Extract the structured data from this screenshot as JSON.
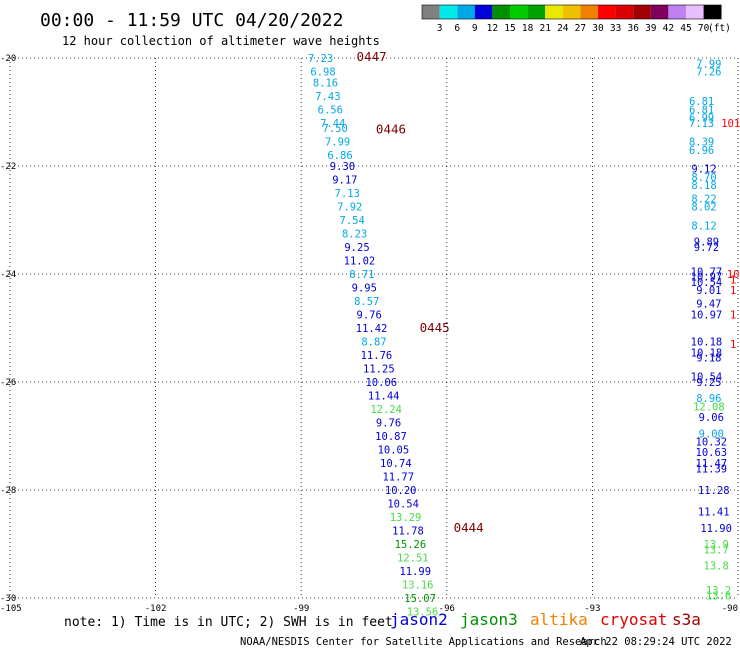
{
  "chart_data": {
    "type": "scatter",
    "title": "00:00 - 11:59 UTC 04/20/2022",
    "subtitle": "12 hour collection of altimeter wave heights",
    "unit": "(ft)",
    "xlim": [
      -105,
      -90
    ],
    "ylim": [
      -30,
      -20
    ],
    "x_ticks": [
      -105,
      -102,
      -99,
      -96,
      -93,
      -90
    ],
    "y_ticks": [
      -20,
      -22,
      -24,
      -26,
      -28,
      -30
    ],
    "x_tick_labels": [
      "-105",
      "-102",
      "-99",
      "-96",
      "-93",
      "-90"
    ],
    "y_tick_labels": [
      "-20",
      "-22",
      "-24",
      "-26",
      "-28",
      "-30"
    ],
    "grid": true,
    "colorbar": {
      "labels": [
        "3",
        "6",
        "9",
        "12",
        "15",
        "18",
        "21",
        "24",
        "27",
        "30",
        "33",
        "36",
        "39",
        "42",
        "45",
        "70"
      ],
      "colors": [
        "#808080",
        "#00e8e8",
        "#00a8e8",
        "#0000d8",
        "#009000",
        "#00cc00",
        "#00a000",
        "#e8e800",
        "#f0c000",
        "#f08000",
        "#ff0000",
        "#d80000",
        "#a00000",
        "#800060",
        "#c080f0",
        "#e8c0ff",
        "#000000"
      ]
    },
    "series": [
      {
        "name": "track",
        "points": [
          {
            "x": -98.6,
            "y": -20.0,
            "v": "7.23",
            "c": "#00a8e8"
          },
          {
            "x": -98.55,
            "y": -20.25,
            "v": "6.98",
            "c": "#00a8e8"
          },
          {
            "x": -98.5,
            "y": -20.45,
            "v": "8.16",
            "c": "#00a8e8"
          },
          {
            "x": -98.45,
            "y": -20.7,
            "v": "7.43",
            "c": "#00a8e8"
          },
          {
            "x": -98.4,
            "y": -20.95,
            "v": "6.56",
            "c": "#00a8e8"
          },
          {
            "x": -98.35,
            "y": -21.2,
            "v": "7.44",
            "c": "#00a8e8"
          },
          {
            "x": -98.3,
            "y": -21.3,
            "v": "7.50",
            "c": "#00a8e8"
          },
          {
            "x": -98.25,
            "y": -21.55,
            "v": "7.99",
            "c": "#00a8e8"
          },
          {
            "x": -98.2,
            "y": -21.8,
            "v": "6.86",
            "c": "#00a8e8"
          },
          {
            "x": -98.15,
            "y": -22.0,
            "v": "9.30",
            "c": "#0000d8"
          },
          {
            "x": -98.1,
            "y": -22.25,
            "v": "9.17",
            "c": "#0000d8"
          },
          {
            "x": -98.05,
            "y": -22.5,
            "v": "7.13",
            "c": "#00a8e8"
          },
          {
            "x": -98.0,
            "y": -22.75,
            "v": "7.92",
            "c": "#00a8e8"
          },
          {
            "x": -97.95,
            "y": -23.0,
            "v": "7.54",
            "c": "#00a8e8"
          },
          {
            "x": -97.9,
            "y": -23.25,
            "v": "8.23",
            "c": "#00a8e8"
          },
          {
            "x": -97.85,
            "y": -23.5,
            "v": "9.25",
            "c": "#0000d8"
          },
          {
            "x": -97.8,
            "y": -23.75,
            "v": "11.02",
            "c": "#0000d8"
          },
          {
            "x": -97.75,
            "y": -24.0,
            "v": "8.71",
            "c": "#00a8e8"
          },
          {
            "x": -97.7,
            "y": -24.25,
            "v": "9.95",
            "c": "#0000d8"
          },
          {
            "x": -97.65,
            "y": -24.5,
            "v": "8.57",
            "c": "#00a8e8"
          },
          {
            "x": -97.6,
            "y": -24.75,
            "v": "9.76",
            "c": "#0000d8"
          },
          {
            "x": -97.55,
            "y": -25.0,
            "v": "11.42",
            "c": "#0000d8"
          },
          {
            "x": -97.5,
            "y": -25.25,
            "v": "8.87",
            "c": "#00a8e8"
          },
          {
            "x": -97.45,
            "y": -25.5,
            "v": "11.76",
            "c": "#0000d8"
          },
          {
            "x": -97.4,
            "y": -25.75,
            "v": "11.25",
            "c": "#0000d8"
          },
          {
            "x": -97.35,
            "y": -26.0,
            "v": "10.06",
            "c": "#0000d8"
          },
          {
            "x": -97.3,
            "y": -26.25,
            "v": "11.44",
            "c": "#0000d8"
          },
          {
            "x": -97.25,
            "y": -26.5,
            "v": "12.24",
            "c": "#44dd44"
          },
          {
            "x": -97.2,
            "y": -26.75,
            "v": "9.76",
            "c": "#0000d8"
          },
          {
            "x": -97.15,
            "y": -27.0,
            "v": "10.87",
            "c": "#0000d8"
          },
          {
            "x": -97.1,
            "y": -27.25,
            "v": "10.05",
            "c": "#0000d8"
          },
          {
            "x": -97.05,
            "y": -27.5,
            "v": "10.74",
            "c": "#0000d8"
          },
          {
            "x": -97.0,
            "y": -27.75,
            "v": "11.77",
            "c": "#0000d8"
          },
          {
            "x": -96.95,
            "y": -28.0,
            "v": "10.20",
            "c": "#0000d8"
          },
          {
            "x": -96.9,
            "y": -28.25,
            "v": "10.54",
            "c": "#0000d8"
          },
          {
            "x": -96.85,
            "y": -28.5,
            "v": "13.29",
            "c": "#44dd44"
          },
          {
            "x": -96.8,
            "y": -28.75,
            "v": "11.78",
            "c": "#0000d8"
          },
          {
            "x": -96.75,
            "y": -29.0,
            "v": "15.26",
            "c": "#009000"
          },
          {
            "x": -96.7,
            "y": -29.25,
            "v": "12.51",
            "c": "#44dd44"
          },
          {
            "x": -96.65,
            "y": -29.5,
            "v": "11.99",
            "c": "#0000d8"
          },
          {
            "x": -96.6,
            "y": -29.75,
            "v": "13.16",
            "c": "#44dd44"
          },
          {
            "x": -96.55,
            "y": -30.0,
            "v": "15.07",
            "c": "#009000"
          },
          {
            "x": -96.5,
            "y": -30.25,
            "v": "13.56",
            "c": "#44dd44"
          },
          {
            "x": -90.6,
            "y": -20.1,
            "v": "7.99",
            "c": "#00a8e8"
          },
          {
            "x": -90.6,
            "y": -20.25,
            "v": "7.26",
            "c": "#00a8e8"
          },
          {
            "x": -90.75,
            "y": -20.8,
            "v": "6.81",
            "c": "#00a8e8"
          },
          {
            "x": -90.75,
            "y": -20.95,
            "v": "6.81",
            "c": "#00a8e8"
          },
          {
            "x": -90.75,
            "y": -21.1,
            "v": "6.99",
            "c": "#00a8e8"
          },
          {
            "x": -90.75,
            "y": -21.2,
            "v": "7.13",
            "c": "#00a8e8"
          },
          {
            "x": -90.75,
            "y": -21.55,
            "v": "8.39",
            "c": "#00a8e8"
          },
          {
            "x": -90.75,
            "y": -21.7,
            "v": "6.96",
            "c": "#00a8e8"
          },
          {
            "x": -90.7,
            "y": -22.05,
            "v": "9.12",
            "c": "#0000d8"
          },
          {
            "x": -90.7,
            "y": -22.2,
            "v": "8.70",
            "c": "#00a8e8"
          },
          {
            "x": -90.7,
            "y": -22.35,
            "v": "8.18",
            "c": "#00a8e8"
          },
          {
            "x": -90.7,
            "y": -22.6,
            "v": "8.22",
            "c": "#00a8e8"
          },
          {
            "x": -90.7,
            "y": -22.75,
            "v": "8.02",
            "c": "#00a8e8"
          },
          {
            "x": -90.7,
            "y": -23.1,
            "v": "8.12",
            "c": "#00a8e8"
          },
          {
            "x": -90.65,
            "y": -23.4,
            "v": "9.89",
            "c": "#0000d8"
          },
          {
            "x": -90.65,
            "y": -23.5,
            "v": "9.72",
            "c": "#0000d8"
          },
          {
            "x": -90.65,
            "y": -23.95,
            "v": "10.77",
            "c": "#0000d8"
          },
          {
            "x": -90.65,
            "y": -24.05,
            "v": "10.97",
            "c": "#0000d8"
          },
          {
            "x": -90.65,
            "y": -24.15,
            "v": "10.54",
            "c": "#0000d8"
          },
          {
            "x": -90.6,
            "y": -24.3,
            "v": "9.01",
            "c": "#0000d8"
          },
          {
            "x": -90.6,
            "y": -24.55,
            "v": "9.47",
            "c": "#0000d8"
          },
          {
            "x": -90.65,
            "y": -24.75,
            "v": "10.97",
            "c": "#0000d8"
          },
          {
            "x": -90.65,
            "y": -25.25,
            "v": "10.18",
            "c": "#0000d8"
          },
          {
            "x": -90.65,
            "y": -25.45,
            "v": "10.18",
            "c": "#0000d8"
          },
          {
            "x": -90.6,
            "y": -25.55,
            "v": "9.18",
            "c": "#0000d8"
          },
          {
            "x": -90.65,
            "y": -25.9,
            "v": "10.54",
            "c": "#0000d8"
          },
          {
            "x": -90.6,
            "y": -26.0,
            "v": "9.25",
            "c": "#0000d8"
          },
          {
            "x": -90.6,
            "y": -26.3,
            "v": "8.96",
            "c": "#00a8e8"
          },
          {
            "x": -90.6,
            "y": -26.45,
            "v": "12.08",
            "c": "#44dd44"
          },
          {
            "x": -90.55,
            "y": -26.65,
            "v": "9.06",
            "c": "#0000d8"
          },
          {
            "x": -90.55,
            "y": -26.95,
            "v": "9.00",
            "c": "#00a8e8"
          },
          {
            "x": -90.55,
            "y": -27.1,
            "v": "10.32",
            "c": "#0000d8"
          },
          {
            "x": -90.55,
            "y": -27.3,
            "v": "10.63",
            "c": "#0000d8"
          },
          {
            "x": -90.55,
            "y": -27.5,
            "v": "11.47",
            "c": "#0000d8"
          },
          {
            "x": -90.55,
            "y": -27.6,
            "v": "11.39",
            "c": "#0000d8"
          },
          {
            "x": -90.5,
            "y": -28.0,
            "v": "11.28",
            "c": "#0000d8"
          },
          {
            "x": -90.5,
            "y": -28.4,
            "v": "11.41",
            "c": "#0000d8"
          },
          {
            "x": -90.45,
            "y": -28.7,
            "v": "11.90",
            "c": "#0000d8"
          },
          {
            "x": -90.45,
            "y": -29.0,
            "v": "13.9",
            "c": "#44dd44"
          },
          {
            "x": -90.45,
            "y": -29.1,
            "v": "13.7",
            "c": "#44dd44"
          },
          {
            "x": -90.45,
            "y": -29.4,
            "v": "13.8",
            "c": "#44dd44"
          },
          {
            "x": -90.4,
            "y": -29.85,
            "v": "13.2",
            "c": "#44dd44"
          },
          {
            "x": -90.4,
            "y": -29.95,
            "v": "13.6",
            "c": "#44dd44"
          },
          {
            "x": -90.15,
            "y": -21.2,
            "v": "101",
            "c": "#ff0000"
          },
          {
            "x": -90.1,
            "y": -24.0,
            "v": "10",
            "c": "#ff0000"
          },
          {
            "x": -90.1,
            "y": -24.1,
            "v": "1",
            "c": "#ff0000"
          },
          {
            "x": -90.1,
            "y": -24.3,
            "v": "1",
            "c": "#ff0000"
          },
          {
            "x": -90.1,
            "y": -24.75,
            "v": "1",
            "c": "#ff0000"
          },
          {
            "x": -90.1,
            "y": -25.3,
            "v": "1",
            "c": "#ff0000"
          }
        ]
      }
    ],
    "time_labels": [
      {
        "x": -97.55,
        "y": -19.98,
        "text": "0447"
      },
      {
        "x": -97.15,
        "y": -21.32,
        "text": "0446"
      },
      {
        "x": -96.25,
        "y": -25.0,
        "text": "0445"
      },
      {
        "x": -95.55,
        "y": -28.7,
        "text": "0444"
      }
    ],
    "legend": [
      {
        "name": "jason2",
        "color": "#0000d8"
      },
      {
        "name": "jason3",
        "color": "#009000"
      },
      {
        "name": "altika",
        "color": "#f08000"
      },
      {
        "name": "cryosat",
        "color": "#e00000"
      },
      {
        "name": "s3a",
        "color": "#a00000"
      }
    ]
  },
  "footer": {
    "note": "note: 1) Time is in UTC; 2) SWH is in feet",
    "credit": "NOAA/NESDIS Center for Satellite Applications and Research",
    "timestamp": "Apr 22 08:29:24 UTC 2022"
  }
}
